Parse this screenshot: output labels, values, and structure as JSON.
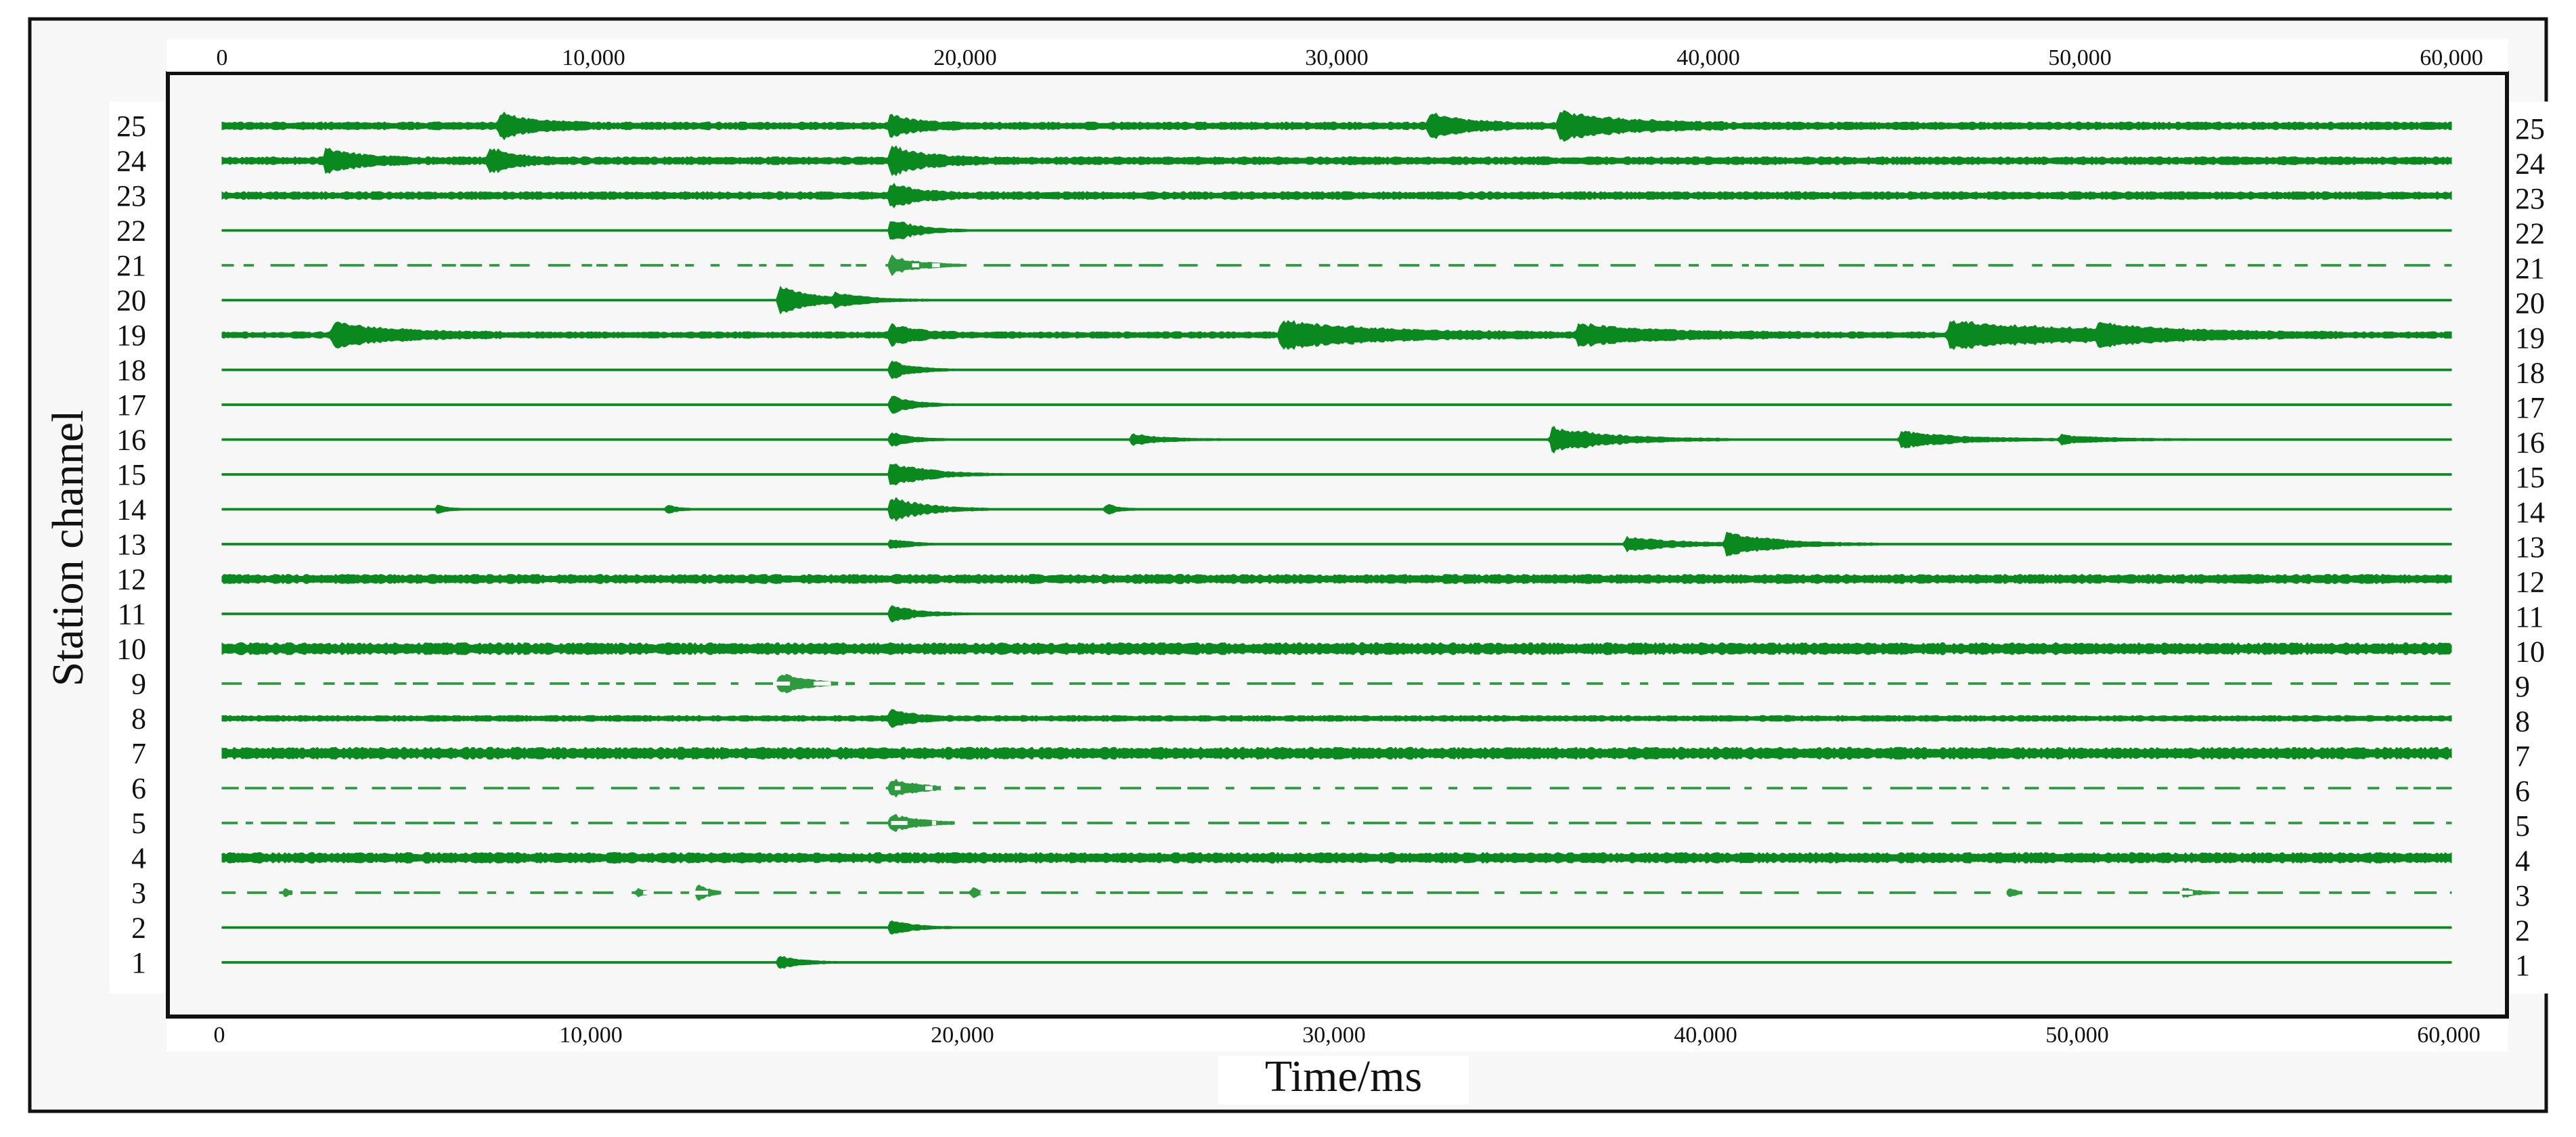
{
  "chart_data": {
    "type": "line",
    "subtype": "seismic-waveform-traces",
    "xlabel": "Time/ms",
    "ylabel": "Station channel",
    "xlim": [
      0,
      60000
    ],
    "x_ticks": [
      0,
      10000,
      20000,
      30000,
      40000,
      50000,
      60000
    ],
    "x_tick_labels": [
      "0",
      "10,000",
      "20,000",
      "30,000",
      "40,000",
      "50,000",
      "60,000"
    ],
    "channels": [
      "1",
      "2",
      "3",
      "4",
      "5",
      "6",
      "7",
      "8",
      "9",
      "10",
      "11",
      "12",
      "13",
      "14",
      "15",
      "16",
      "17",
      "18",
      "19",
      "20",
      "21",
      "22",
      "23",
      "24",
      "25"
    ],
    "series_color": "#0a8a1e",
    "grid": false,
    "traces": [
      {
        "channel": "1",
        "noise": 0.8,
        "style": "solid",
        "events": [
          {
            "t": 15000,
            "amp": 5.0,
            "dur": 600
          }
        ]
      },
      {
        "channel": "2",
        "noise": 0.8,
        "style": "solid",
        "events": [
          {
            "t": 18000,
            "amp": 5.0,
            "dur": 700
          }
        ]
      },
      {
        "channel": "3",
        "noise": 0.6,
        "style": "dashed",
        "events": [
          {
            "t": 1700,
            "amp": 3.0,
            "dur": 200
          },
          {
            "t": 11200,
            "amp": 4.0,
            "dur": 200
          },
          {
            "t": 12800,
            "amp": 7.0,
            "dur": 300
          },
          {
            "t": 20200,
            "amp": 4.0,
            "dur": 200
          },
          {
            "t": 48100,
            "amp": 4.0,
            "dur": 200
          },
          {
            "t": 52800,
            "amp": 4.0,
            "dur": 400
          }
        ]
      },
      {
        "channel": "4",
        "noise": 8.0,
        "style": "solid",
        "events": []
      },
      {
        "channel": "5",
        "noise": 0.6,
        "style": "dashed",
        "events": [
          {
            "t": 18000,
            "amp": 7.0,
            "dur": 800
          }
        ]
      },
      {
        "channel": "6",
        "noise": 0.6,
        "style": "dashed",
        "events": [
          {
            "t": 18000,
            "amp": 7.0,
            "dur": 800
          }
        ]
      },
      {
        "channel": "7",
        "noise": 9.0,
        "style": "solid",
        "events": []
      },
      {
        "channel": "8",
        "noise": 4.5,
        "style": "solid",
        "events": [
          {
            "t": 18000,
            "amp": 6.0,
            "dur": 500
          }
        ]
      },
      {
        "channel": "9",
        "noise": 1.2,
        "style": "dashed",
        "events": [
          {
            "t": 15000,
            "amp": 8.0,
            "dur": 700
          }
        ]
      },
      {
        "channel": "10",
        "noise": 9.0,
        "style": "solid",
        "events": []
      },
      {
        "channel": "11",
        "noise": 0.8,
        "style": "solid",
        "events": [
          {
            "t": 18000,
            "amp": 6.0,
            "dur": 800
          }
        ]
      },
      {
        "channel": "12",
        "noise": 7.0,
        "style": "solid",
        "events": []
      },
      {
        "channel": "13",
        "noise": 1.0,
        "style": "solid",
        "events": [
          {
            "t": 18000,
            "amp": 4.0,
            "dur": 500
          },
          {
            "t": 37800,
            "amp": 5.0,
            "dur": 1500
          },
          {
            "t": 40500,
            "amp": 8.0,
            "dur": 1400
          }
        ]
      },
      {
        "channel": "14",
        "noise": 1.0,
        "style": "solid",
        "events": [
          {
            "t": 5800,
            "amp": 3.0,
            "dur": 300
          },
          {
            "t": 12000,
            "amp": 3.0,
            "dur": 300
          },
          {
            "t": 18000,
            "amp": 9.0,
            "dur": 900
          },
          {
            "t": 23800,
            "amp": 4.0,
            "dur": 300
          }
        ]
      },
      {
        "channel": "15",
        "noise": 0.8,
        "style": "solid",
        "events": [
          {
            "t": 18000,
            "amp": 9.0,
            "dur": 1000
          }
        ]
      },
      {
        "channel": "16",
        "noise": 1.2,
        "style": "solid",
        "events": [
          {
            "t": 18000,
            "amp": 6.0,
            "dur": 500
          },
          {
            "t": 24500,
            "amp": 4.0,
            "dur": 800
          },
          {
            "t": 35800,
            "amp": 9.0,
            "dur": 1600
          },
          {
            "t": 45200,
            "amp": 6.0,
            "dur": 1500
          },
          {
            "t": 49500,
            "amp": 3.0,
            "dur": 1200
          }
        ]
      },
      {
        "channel": "17",
        "noise": 0.8,
        "style": "solid",
        "events": [
          {
            "t": 18000,
            "amp": 7.0,
            "dur": 600
          }
        ]
      },
      {
        "channel": "18",
        "noise": 0.8,
        "style": "solid",
        "events": [
          {
            "t": 18000,
            "amp": 7.0,
            "dur": 600
          }
        ]
      },
      {
        "channel": "19",
        "noise": 5.0,
        "style": "solid",
        "events": [
          {
            "t": 3000,
            "amp": 8.0,
            "dur": 1500
          },
          {
            "t": 18000,
            "amp": 7.0,
            "dur": 600
          },
          {
            "t": 28500,
            "amp": 9.0,
            "dur": 2500
          },
          {
            "t": 36500,
            "amp": 7.0,
            "dur": 2000
          },
          {
            "t": 46500,
            "amp": 9.0,
            "dur": 3500
          },
          {
            "t": 50500,
            "amp": 5.0,
            "dur": 1500
          }
        ]
      },
      {
        "channel": "20",
        "noise": 1.0,
        "style": "solid",
        "events": [
          {
            "t": 15000,
            "amp": 10.0,
            "dur": 900
          },
          {
            "t": 16500,
            "amp": 4.0,
            "dur": 1000
          }
        ]
      },
      {
        "channel": "21",
        "noise": 0.6,
        "style": "dashed",
        "events": [
          {
            "t": 18000,
            "amp": 7.0,
            "dur": 800
          }
        ]
      },
      {
        "channel": "22",
        "noise": 0.8,
        "style": "solid",
        "events": [
          {
            "t": 18000,
            "amp": 9.0,
            "dur": 700
          }
        ]
      },
      {
        "channel": "23",
        "noise": 6.0,
        "style": "solid",
        "events": [
          {
            "t": 18000,
            "amp": 7.0,
            "dur": 600
          }
        ]
      },
      {
        "channel": "24",
        "noise": 6.0,
        "style": "solid",
        "events": [
          {
            "t": 2800,
            "amp": 8.0,
            "dur": 800
          },
          {
            "t": 7200,
            "amp": 8.0,
            "dur": 600
          },
          {
            "t": 18000,
            "amp": 10.0,
            "dur": 800
          }
        ]
      },
      {
        "channel": "25",
        "noise": 6.0,
        "style": "solid",
        "events": [
          {
            "t": 7500,
            "amp": 8.0,
            "dur": 800
          },
          {
            "t": 18000,
            "amp": 7.0,
            "dur": 600
          },
          {
            "t": 32500,
            "amp": 8.0,
            "dur": 800
          },
          {
            "t": 36000,
            "amp": 9.0,
            "dur": 1500
          }
        ]
      }
    ]
  }
}
